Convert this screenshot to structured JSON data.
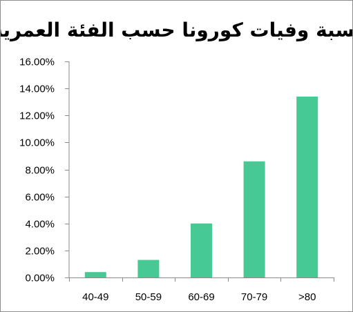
{
  "chart_data": {
    "type": "bar",
    "title": "نسبة وفيات كورونا حسب الفئة العمرية",
    "categories": [
      "40-49",
      "50-59",
      "60-69",
      "70-79",
      ">80"
    ],
    "values": [
      0.4,
      1.3,
      4.0,
      8.6,
      13.4
    ],
    "value_format": "percent_2dp",
    "ylim": [
      0,
      16
    ],
    "yticks": [
      0,
      2,
      4,
      6,
      8,
      10,
      12,
      14,
      16
    ],
    "ytick_labels": [
      "0.00%",
      "2.00%",
      "4.00%",
      "6.00%",
      "8.00%",
      "10.00%",
      "12.00%",
      "14.00%",
      "16.00%"
    ],
    "grid": false,
    "legend": "none",
    "bar_color": "#47c994",
    "axis_color": "#898989"
  }
}
